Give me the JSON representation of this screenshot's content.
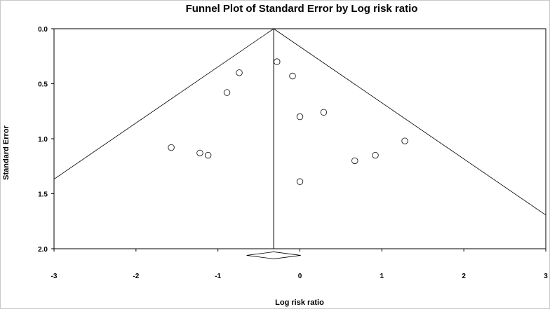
{
  "chart_data": {
    "type": "scatter",
    "title": "Funnel Plot of Standard Error by Log risk ratio",
    "xlabel": "Log risk ratio",
    "ylabel": "Standard Error",
    "xlim": [
      -3,
      3
    ],
    "ylim": [
      0,
      2
    ],
    "y_inverted": true,
    "x_ticks": [
      "-3",
      "-2",
      "-1",
      "0",
      "1",
      "2",
      "3"
    ],
    "y_ticks": [
      "0.0",
      "0.5",
      "1.0",
      "1.5",
      "2.0"
    ],
    "pooled_estimate": -0.32,
    "funnel_multiplier": 1.96,
    "summary_diamond": {
      "center": -0.32,
      "lower": -0.65,
      "upper": 0.01,
      "se": 2.06
    },
    "points": [
      {
        "x": -0.28,
        "y": 0.3
      },
      {
        "x": -0.09,
        "y": 0.43
      },
      {
        "x": -0.74,
        "y": 0.4
      },
      {
        "x": -0.89,
        "y": 0.58
      },
      {
        "x": 0.0,
        "y": 0.8
      },
      {
        "x": 0.29,
        "y": 0.76
      },
      {
        "x": 1.28,
        "y": 1.02
      },
      {
        "x": -1.57,
        "y": 1.08
      },
      {
        "x": -1.22,
        "y": 1.13
      },
      {
        "x": -1.12,
        "y": 1.15
      },
      {
        "x": 0.67,
        "y": 1.2
      },
      {
        "x": 0.92,
        "y": 1.15
      },
      {
        "x": 0.0,
        "y": 1.39
      }
    ]
  }
}
